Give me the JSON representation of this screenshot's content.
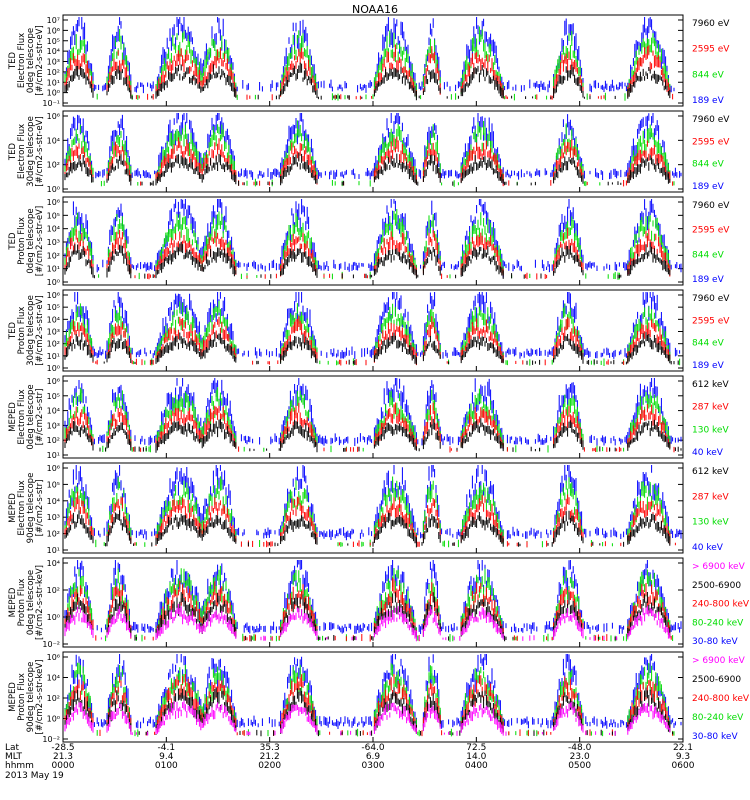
{
  "title": "NOAA16",
  "date_label": "2013 May 19",
  "colors": {
    "black": "#000000",
    "red": "#ff0000",
    "green": "#00dd00",
    "blue": "#0000ff",
    "magenta": "#ff00ff"
  },
  "footer": {
    "row_labels": [
      "Lat",
      "MLT",
      "hhmm"
    ],
    "ticks": [
      {
        "lat": "-28.5",
        "mlt": "21.3",
        "hhmm": "0000"
      },
      {
        "lat": "-4.1",
        "mlt": "9.4",
        "hhmm": "0100"
      },
      {
        "lat": "35.3",
        "mlt": "21.2",
        "hhmm": "0200"
      },
      {
        "lat": "-64.0",
        "mlt": "6.9",
        "hhmm": "0300"
      },
      {
        "lat": "72.5",
        "mlt": "14.0",
        "hhmm": "0400"
      },
      {
        "lat": "-48.0",
        "mlt": "23.0",
        "hhmm": "0500"
      },
      {
        "lat": "22.1",
        "mlt": "9.3",
        "hhmm": "0600"
      }
    ]
  },
  "chart_data": [
    {
      "type": "line",
      "ylabel": [
        "TED",
        "Electron Flux",
        "0deg telescope",
        "[#/cm2-s-str-eV]"
      ],
      "yticks": [
        "10⁻¹",
        "10⁰",
        "10¹",
        "10²",
        "10³",
        "10⁴",
        "10⁵",
        "10⁶",
        "10⁷"
      ],
      "ylim_exp": [
        -1,
        7
      ],
      "legend": [
        {
          "label": "7960 eV",
          "color": "black"
        },
        {
          "label": "2595 eV",
          "color": "red"
        },
        {
          "label": "844 eV",
          "color": "green"
        },
        {
          "label": "189 eV",
          "color": "blue"
        }
      ]
    },
    {
      "type": "line",
      "ylabel": [
        "TED",
        "Electron Flux",
        "30deg telescope",
        "[#/cm2-s-str-eV]"
      ],
      "yticks": [
        "10⁰",
        "10²",
        "10⁴",
        "10⁶"
      ],
      "ylim_exp": [
        0,
        7
      ],
      "legend": [
        {
          "label": "7960 eV",
          "color": "black"
        },
        {
          "label": "2595 eV",
          "color": "red"
        },
        {
          "label": "844 eV",
          "color": "green"
        },
        {
          "label": "189 eV",
          "color": "blue"
        }
      ]
    },
    {
      "type": "line",
      "ylabel": [
        "TED",
        "Proton Flux",
        "0deg telescope",
        "[#/cm2-s-str-eV]"
      ],
      "yticks": [
        "10⁰",
        "10¹",
        "10²",
        "10³",
        "10⁴",
        "10⁵",
        "10⁶"
      ],
      "ylim_exp": [
        0,
        6
      ],
      "legend": [
        {
          "label": "7960 eV",
          "color": "black"
        },
        {
          "label": "2595 eV",
          "color": "red"
        },
        {
          "label": "844 eV",
          "color": "green"
        },
        {
          "label": "189 eV",
          "color": "blue"
        }
      ]
    },
    {
      "type": "line",
      "ylabel": [
        "TED",
        "Proton Flux",
        "30deg telescope",
        "[#/cm2-s-str-eV]"
      ],
      "yticks": [
        "10⁰",
        "10¹",
        "10²",
        "10³",
        "10⁴",
        "10⁵",
        "10⁶"
      ],
      "ylim_exp": [
        0,
        6
      ],
      "legend": [
        {
          "label": "7960 eV",
          "color": "black"
        },
        {
          "label": "2595 eV",
          "color": "red"
        },
        {
          "label": "844 eV",
          "color": "green"
        },
        {
          "label": "189 eV",
          "color": "blue"
        }
      ]
    },
    {
      "type": "line",
      "ylabel": [
        "MEPED",
        "Electron Flux",
        "0deg telescope",
        "[#/cm2-s-str]"
      ],
      "yticks": [
        "10¹",
        "10²",
        "10³",
        "10⁴",
        "10⁵",
        "10⁶"
      ],
      "ylim_exp": [
        1,
        6
      ],
      "legend": [
        {
          "label": "612 keV",
          "color": "black"
        },
        {
          "label": "287 keV",
          "color": "red"
        },
        {
          "label": "130 keV",
          "color": "green"
        },
        {
          "label": "40 keV",
          "color": "blue"
        }
      ]
    },
    {
      "type": "line",
      "ylabel": [
        "MEPED",
        "Electron Flux",
        "90deg telescope",
        "[#/cm2-s-str]"
      ],
      "yticks": [
        "10¹",
        "10²",
        "10³",
        "10⁴",
        "10⁵",
        "10⁶"
      ],
      "ylim_exp": [
        1,
        6
      ],
      "legend": [
        {
          "label": "612 keV",
          "color": "black"
        },
        {
          "label": "287 keV",
          "color": "red"
        },
        {
          "label": "130 keV",
          "color": "green"
        },
        {
          "label": "40 keV",
          "color": "blue"
        }
      ]
    },
    {
      "type": "line",
      "ylabel": [
        "MEPED",
        "Proton Flux",
        "0deg telescope",
        "[#/cm2-s-str-keV]"
      ],
      "yticks": [
        "10⁻²",
        "10⁰",
        "10²",
        "10⁴"
      ],
      "ylim_exp": [
        -2,
        5
      ],
      "legend": [
        {
          "label": "> 6900 keV",
          "color": "magenta"
        },
        {
          "label": "2500-6900",
          "color": "black"
        },
        {
          "label": "240-800 keV",
          "color": "red"
        },
        {
          "label": "80-240 keV",
          "color": "green"
        },
        {
          "label": "30-80 keV",
          "color": "blue"
        }
      ]
    },
    {
      "type": "line",
      "ylabel": [
        "MEPED",
        "Proton Flux",
        "90deg telescope",
        "[#/cm2-s-str-keV]"
      ],
      "yticks": [
        "10⁻²",
        "10⁰",
        "10²",
        "10⁴",
        "10⁶"
      ],
      "ylim_exp": [
        -2,
        6
      ],
      "legend": [
        {
          "label": "> 6900 keV",
          "color": "magenta"
        },
        {
          "label": "2500-6900",
          "color": "black"
        },
        {
          "label": "240-800 keV",
          "color": "red"
        },
        {
          "label": "80-240 keV",
          "color": "green"
        },
        {
          "label": "30-80 keV",
          "color": "blue"
        }
      ]
    }
  ]
}
